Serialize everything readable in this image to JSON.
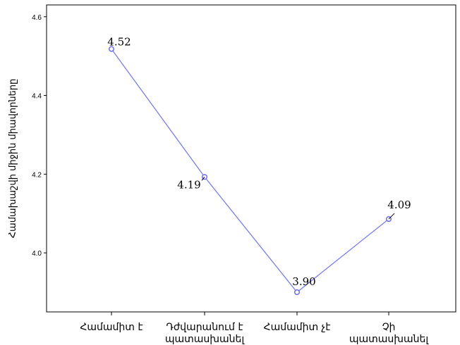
{
  "chart_data": {
    "type": "line",
    "categories": [
      "Համամիտ է",
      "Դժվարանում է պատասխանել",
      "Համամիտ չէ",
      "Չի պատասխանել"
    ],
    "category_lines": [
      [
        "Համամիտ է"
      ],
      [
        "Դժվարանում է",
        "պատասխանել"
      ],
      [
        "Համամիտ չէ"
      ],
      [
        "Չի",
        "պատասխանել"
      ]
    ],
    "values": [
      4.518,
      4.193,
      3.9,
      4.086
    ],
    "data_labels": [
      "4.52",
      "4.19",
      "3.90",
      "4.09"
    ],
    "title": "",
    "xlabel": "",
    "ylabel": "Համախաշվի միջին միավորները",
    "ylim": [
      3.85,
      4.63
    ],
    "yticks": [
      4.0,
      4.2,
      4.4,
      4.6
    ],
    "ytick_labels": [
      "4.0",
      "4.2",
      "4.4",
      "4.6"
    ],
    "grid": false,
    "line_color": "#7b7bff",
    "marker_color": "#6a6aff"
  }
}
